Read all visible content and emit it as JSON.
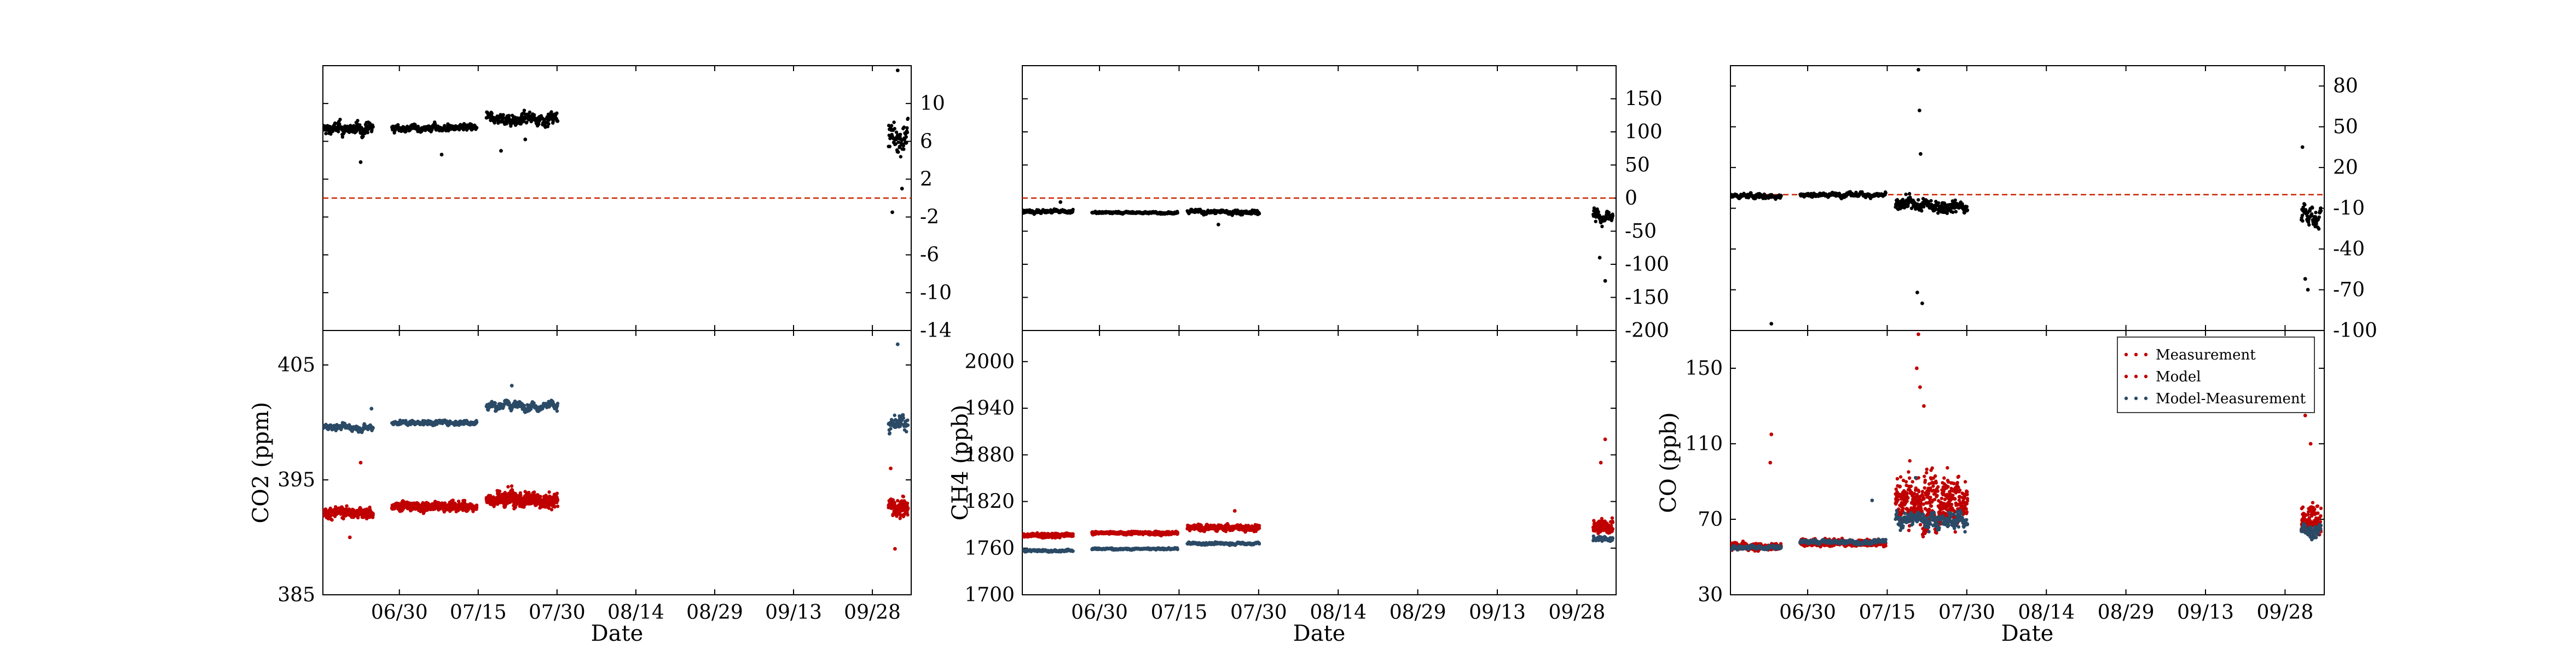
{
  "chart_data": [
    {
      "type": "scatter",
      "subplot": "CO2 difference (top)",
      "title": "",
      "xlabel": "",
      "ylabel": "",
      "y_axis_side": "right",
      "ylim": [
        -14,
        14
      ],
      "yticks": [
        "10",
        "6",
        "2",
        "-2",
        "-6",
        "-10",
        "-14"
      ],
      "reference_line": {
        "y": 0,
        "color": "#cc2200",
        "style": "dashed"
      },
      "series": [
        {
          "name": "Model-Measurement",
          "color": "#000000",
          "segments": [
            {
              "start": 0.0,
              "end": 9.3,
              "level": 7.3,
              "spread": 1.2
            },
            {
              "start": 12.8,
              "end": 28.5,
              "level": 7.4,
              "spread": 0.7
            },
            {
              "start": 30.3,
              "end": 43.5,
              "level": 8.4,
              "spread": 1.2
            },
            {
              "start": 104.8,
              "end": 108.4,
              "level": 6.5,
              "spread": 3.5
            }
          ],
          "spikes": [
            {
              "day": 7.0,
              "y": 3.8
            },
            {
              "day": 37.5,
              "y": 6.2
            },
            {
              "day": 33.0,
              "y": 5.0
            },
            {
              "day": 22.0,
              "y": 4.6
            },
            {
              "day": 105.5,
              "y": -1.5
            },
            {
              "day": 106.5,
              "y": 13.5
            },
            {
              "day": 107.3,
              "y": 1.0
            }
          ]
        }
      ]
    },
    {
      "type": "scatter",
      "subplot": "CO2 (bottom)",
      "title": "",
      "xlabel": "Date",
      "ylabel": "CO2 (ppm)",
      "ylim": [
        385,
        408
      ],
      "yticks": [
        "405",
        "395",
        "385"
      ],
      "xlim_day_offsets": [
        0,
        109
      ],
      "xticks": [
        "06/30",
        "07/15",
        "07/30",
        "08/14",
        "08/29",
        "09/13",
        "09/28"
      ],
      "series": [
        {
          "name": "Measurement",
          "color": "#c00000",
          "segments": [
            {
              "start": 0.0,
              "end": 9.3,
              "level": 392.2,
              "spread": 0.8
            },
            {
              "start": 12.8,
              "end": 28.5,
              "level": 392.8,
              "spread": 0.6
            },
            {
              "start": 30.3,
              "end": 43.5,
              "level": 393.3,
              "spread": 1.2
            },
            {
              "start": 104.8,
              "end": 108.4,
              "level": 392.8,
              "spread": 1.6
            }
          ],
          "spikes": [
            {
              "day": 7.0,
              "y": 396.5
            },
            {
              "day": 5.0,
              "y": 390.0
            },
            {
              "day": 106.0,
              "y": 389.0
            },
            {
              "day": 105.2,
              "y": 396.0
            }
          ]
        },
        {
          "name": "Model",
          "color": "#c00000",
          "segments": [
            {
              "start": 0.0,
              "end": 9.3,
              "level": 392.1,
              "spread": 0.8
            },
            {
              "start": 12.8,
              "end": 28.5,
              "level": 392.6,
              "spread": 0.6
            },
            {
              "start": 30.3,
              "end": 43.5,
              "level": 393.1,
              "spread": 1.1
            },
            {
              "start": 104.8,
              "end": 108.4,
              "level": 392.6,
              "spread": 1.5
            }
          ],
          "spikes": []
        },
        {
          "name": "Model-Measurement",
          "color": "#2b4a66",
          "segments": [
            {
              "start": 0.0,
              "end": 9.3,
              "level": 399.6,
              "spread": 0.5
            },
            {
              "start": 12.8,
              "end": 28.5,
              "level": 400.0,
              "spread": 0.4
            },
            {
              "start": 30.3,
              "end": 43.5,
              "level": 401.5,
              "spread": 0.7
            },
            {
              "start": 104.8,
              "end": 108.4,
              "level": 399.8,
              "spread": 1.5
            }
          ],
          "spikes": [
            {
              "day": 106.5,
              "y": 406.8
            },
            {
              "day": 35.0,
              "y": 403.2
            },
            {
              "day": 9.0,
              "y": 401.2
            }
          ]
        }
      ]
    },
    {
      "type": "scatter",
      "subplot": "CH4 difference (top)",
      "title": "",
      "xlabel": "",
      "ylabel": "",
      "y_axis_side": "right",
      "ylim": [
        -200,
        200
      ],
      "yticks": [
        "150",
        "100",
        "50",
        "0",
        "-50",
        "-100",
        "-150",
        "-200"
      ],
      "reference_line": {
        "y": 0,
        "color": "#cc2200",
        "style": "dashed"
      },
      "series": [
        {
          "name": "Model-Measurement",
          "color": "#000000",
          "segments": [
            {
              "start": 0.0,
              "end": 9.3,
              "level": -20,
              "spread": 5
            },
            {
              "start": 12.8,
              "end": 28.5,
              "level": -22,
              "spread": 3
            },
            {
              "start": 30.3,
              "end": 43.5,
              "level": -21,
              "spread": 6
            },
            {
              "start": 104.8,
              "end": 108.4,
              "level": -28,
              "spread": 18
            }
          ],
          "spikes": [
            {
              "day": 7.0,
              "y": -6
            },
            {
              "day": 36.0,
              "y": -40
            },
            {
              "day": 107.0,
              "y": -125
            },
            {
              "day": 106.0,
              "y": -90
            }
          ]
        }
      ]
    },
    {
      "type": "scatter",
      "subplot": "CH4 (bottom)",
      "title": "",
      "xlabel": "Date",
      "ylabel": "CH4 (ppb)",
      "ylim": [
        1700,
        2040
      ],
      "yticks": [
        "2000",
        "1940",
        "1880",
        "1820",
        "1760",
        "1700"
      ],
      "xlim_day_offsets": [
        0,
        109
      ],
      "xticks": [
        "06/30",
        "07/15",
        "07/30",
        "08/14",
        "08/29",
        "09/13",
        "09/28"
      ],
      "series": [
        {
          "name": "Measurement",
          "color": "#c00000",
          "segments": [
            {
              "start": 0.0,
              "end": 9.3,
              "level": 1777,
              "spread": 4
            },
            {
              "start": 12.8,
              "end": 28.5,
              "level": 1780,
              "spread": 3
            },
            {
              "start": 30.3,
              "end": 43.5,
              "level": 1787,
              "spread": 7
            },
            {
              "start": 104.8,
              "end": 108.4,
              "level": 1790,
              "spread": 18
            }
          ],
          "spikes": [
            {
              "day": 39.0,
              "y": 1808
            },
            {
              "day": 107.0,
              "y": 1900
            },
            {
              "day": 106.2,
              "y": 1870
            }
          ]
        },
        {
          "name": "Model",
          "color": "#c00000",
          "segments": [
            {
              "start": 0.0,
              "end": 9.3,
              "level": 1776,
              "spread": 3
            },
            {
              "start": 12.8,
              "end": 28.5,
              "level": 1779,
              "spread": 3
            },
            {
              "start": 30.3,
              "end": 43.5,
              "level": 1786,
              "spread": 6
            },
            {
              "start": 104.8,
              "end": 108.4,
              "level": 1786,
              "spread": 12
            }
          ],
          "spikes": []
        },
        {
          "name": "Model-Measurement",
          "color": "#2b4a66",
          "segments": [
            {
              "start": 0.0,
              "end": 9.3,
              "level": 1757,
              "spread": 3
            },
            {
              "start": 12.8,
              "end": 28.5,
              "level": 1759,
              "spread": 2
            },
            {
              "start": 30.3,
              "end": 43.5,
              "level": 1766,
              "spread": 3
            },
            {
              "start": 104.8,
              "end": 108.4,
              "level": 1772,
              "spread": 7
            }
          ],
          "spikes": []
        }
      ]
    },
    {
      "type": "scatter",
      "subplot": "CO difference (top)",
      "title": "",
      "xlabel": "",
      "ylabel": "",
      "y_axis_side": "right",
      "ylim": [
        -100,
        95
      ],
      "yticks": [
        "80",
        "50",
        "20",
        "-10",
        "-40",
        "-70",
        "-100"
      ],
      "reference_line": {
        "y": 0,
        "color": "#cc2200",
        "style": "dashed"
      },
      "series": [
        {
          "name": "Model-Measurement",
          "color": "#000000",
          "segments": [
            {
              "start": 0.0,
              "end": 9.3,
              "level": -1,
              "spread": 3
            },
            {
              "start": 12.8,
              "end": 28.5,
              "level": 0,
              "spread": 3
            },
            {
              "start": 30.3,
              "end": 43.5,
              "level": -8,
              "spread": 9
            },
            {
              "start": 104.8,
              "end": 108.4,
              "level": -15,
              "spread": 14
            }
          ],
          "spikes": [
            {
              "day": 7.5,
              "y": -95
            },
            {
              "day": 7.6,
              "y": -105
            },
            {
              "day": 34.5,
              "y": 92
            },
            {
              "day": 34.7,
              "y": 62
            },
            {
              "day": 34.9,
              "y": 30
            },
            {
              "day": 34.3,
              "y": -72
            },
            {
              "day": 35.2,
              "y": -80
            },
            {
              "day": 105.0,
              "y": 35
            },
            {
              "day": 106.0,
              "y": -70
            },
            {
              "day": 105.5,
              "y": -62
            }
          ]
        }
      ]
    },
    {
      "type": "scatter",
      "subplot": "CO (bottom)",
      "title": "",
      "xlabel": "Date",
      "ylabel": "CO (ppb)",
      "ylim": [
        30,
        170
      ],
      "yticks": [
        "150",
        "110",
        "70",
        "30"
      ],
      "xlim_day_offsets": [
        0,
        109
      ],
      "xticks": [
        "06/30",
        "07/15",
        "07/30",
        "08/14",
        "08/29",
        "09/13",
        "09/28"
      ],
      "legend_position": "top-right",
      "legend": [
        "Measurement",
        "Model",
        "Model-Measurement"
      ],
      "series": [
        {
          "name": "Measurement",
          "color": "#c00000",
          "segments": [
            {
              "start": 0.0,
              "end": 9.3,
              "level": 56,
              "spread": 3
            },
            {
              "start": 12.8,
              "end": 28.5,
              "level": 58,
              "spread": 3
            },
            {
              "start": 30.3,
              "end": 43.5,
              "level": 82,
              "spread": 20
            },
            {
              "start": 104.8,
              "end": 108.4,
              "level": 72,
              "spread": 15
            }
          ],
          "spikes": [
            {
              "day": 7.5,
              "y": 115
            },
            {
              "day": 7.3,
              "y": 100
            },
            {
              "day": 34.5,
              "y": 168
            },
            {
              "day": 34.2,
              "y": 150
            },
            {
              "day": 34.8,
              "y": 140
            },
            {
              "day": 35.5,
              "y": 130
            },
            {
              "day": 105.5,
              "y": 125
            },
            {
              "day": 106.5,
              "y": 110
            }
          ]
        },
        {
          "name": "Model",
          "color": "#c00000",
          "segments": [
            {
              "start": 0.0,
              "end": 9.3,
              "level": 55,
              "spread": 2
            },
            {
              "start": 12.8,
              "end": 28.5,
              "level": 57,
              "spread": 2
            },
            {
              "start": 30.3,
              "end": 43.5,
              "level": 75,
              "spread": 16
            },
            {
              "start": 104.8,
              "end": 108.4,
              "level": 66,
              "spread": 10
            }
          ],
          "spikes": []
        },
        {
          "name": "Model-Measurement",
          "color": "#2b4a66",
          "segments": [
            {
              "start": 0.0,
              "end": 9.3,
              "level": 55,
              "spread": 2
            },
            {
              "start": 12.8,
              "end": 28.5,
              "level": 58,
              "spread": 2
            },
            {
              "start": 30.3,
              "end": 43.5,
              "level": 70,
              "spread": 8
            },
            {
              "start": 104.8,
              "end": 108.4,
              "level": 64,
              "spread": 7
            }
          ],
          "spikes": [
            {
              "day": 34.0,
              "y": 92
            },
            {
              "day": 26.0,
              "y": 80
            }
          ]
        }
      ]
    }
  ]
}
